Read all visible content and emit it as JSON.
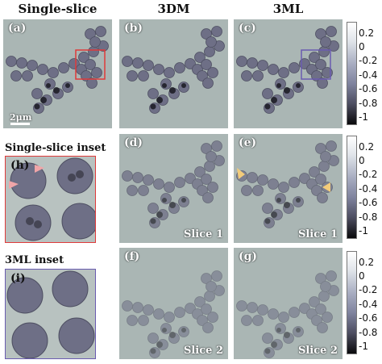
{
  "titles": {
    "single": "Single-slice",
    "dm": "3DM",
    "ml": "3ML"
  },
  "panels": {
    "a": "(a)",
    "b": "(b)",
    "c": "(c)",
    "d": "(d)",
    "e": "(e)",
    "f": "(f)",
    "g": "(g)",
    "h": "(h)",
    "i": "(i)"
  },
  "slices": {
    "d": "Slice 1",
    "e": "Slice 1",
    "f": "Slice 2",
    "g": "Slice 2"
  },
  "side": {
    "single_inset": "Single-slice inset",
    "ml_inset": "3ML inset"
  },
  "scale": "2μm",
  "colorbar_ticks": [
    "0.2",
    "0",
    "-0.2",
    "-0.4",
    "-0.6",
    "-0.8",
    "-1"
  ],
  "colors": {
    "bg": "#aab6b4",
    "bead": "#6e6f86",
    "dark": "#1a1a22",
    "red_box": "#e03a3a",
    "purple_box": "#6a5bb0",
    "marker_pink": "#f0a5a8",
    "marker_yellow": "#f3cc7a"
  }
}
